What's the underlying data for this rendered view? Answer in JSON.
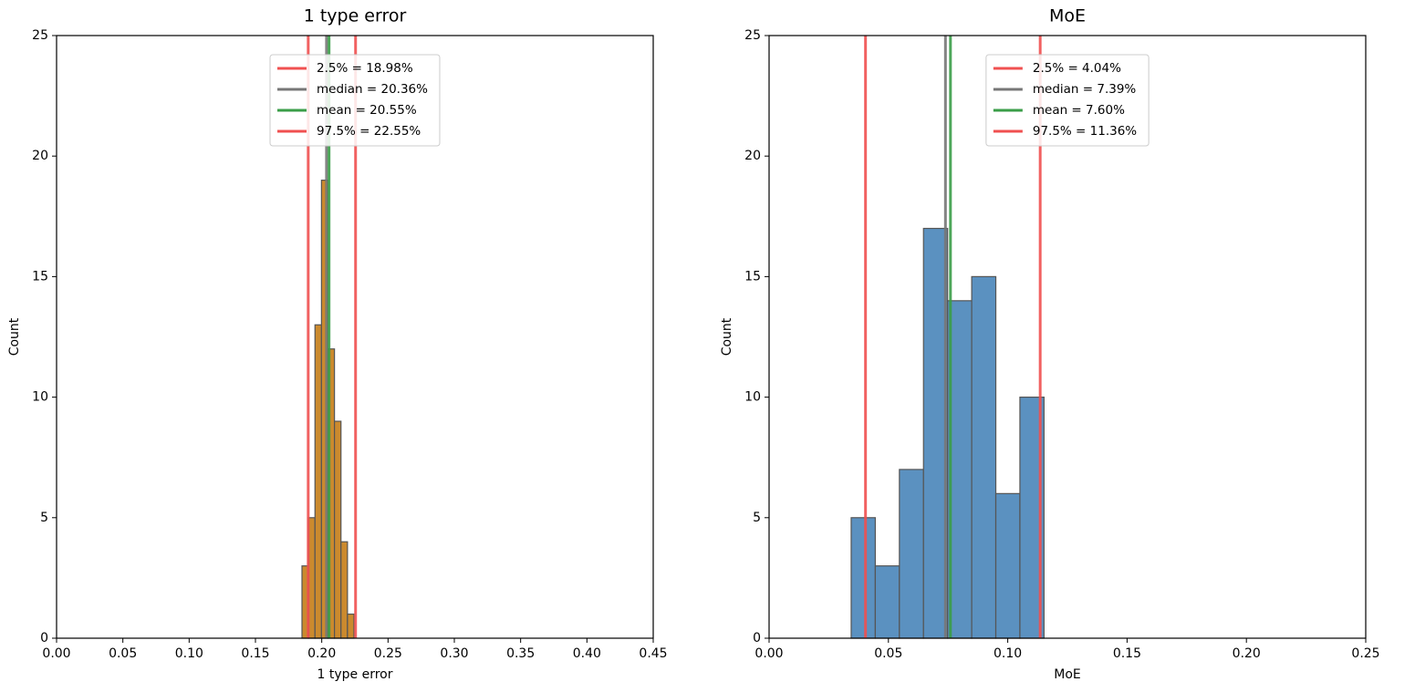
{
  "chart_data": [
    {
      "type": "histogram",
      "title": "1 type error",
      "xlabel": "1 type error",
      "ylabel": "Count",
      "bins": [
        0.1851,
        0.19,
        0.1949,
        0.1998,
        0.2047,
        0.2096,
        0.2145,
        0.2194,
        0.2243
      ],
      "counts": [
        3,
        5,
        13,
        19,
        12,
        9,
        4,
        1
      ],
      "color": "#cb8a2e",
      "xlim": [
        0,
        0.45
      ],
      "xticks": [
        {
          "value": 0,
          "label": "0.00"
        },
        {
          "value": 0.05,
          "label": "0.05"
        },
        {
          "value": 0.1,
          "label": "0.10"
        },
        {
          "value": 0.15,
          "label": "0.15"
        },
        {
          "value": 0.2,
          "label": "0.20"
        },
        {
          "value": 0.25,
          "label": "0.25"
        },
        {
          "value": 0.3,
          "label": "0.30"
        },
        {
          "value": 0.35,
          "label": "0.35"
        },
        {
          "value": 0.4,
          "label": "0.40"
        },
        {
          "value": 0.45,
          "label": "0.45"
        }
      ],
      "ylim": [
        0,
        25
      ],
      "yticks": [
        0,
        5,
        10,
        15,
        20,
        25
      ],
      "legend": "upper center",
      "lines": [
        {
          "name": "2.5% = 18.98%",
          "color": "#f05050",
          "value": 0.1898
        },
        {
          "name": "median = 20.36%",
          "color": "#777777",
          "value": 0.2036
        },
        {
          "name": "mean = 20.55%",
          "color": "#3a9e48",
          "value": 0.2055
        },
        {
          "name": "97.5% = 22.55%",
          "color": "#f05050",
          "value": 0.2255
        }
      ]
    },
    {
      "type": "histogram",
      "title": "MoE",
      "xlabel": "MoE",
      "ylabel": "Count",
      "bins": [
        0.0344,
        0.0445,
        0.0546,
        0.0647,
        0.0748,
        0.0849,
        0.095,
        0.1051,
        0.1152
      ],
      "counts": [
        5,
        3,
        7,
        17,
        14,
        15,
        6,
        10
      ],
      "color": "#5b91c0",
      "xlim": [
        0,
        0.25
      ],
      "xticks": [
        {
          "value": 0,
          "label": "0.00"
        },
        {
          "value": 0.05,
          "label": "0.05"
        },
        {
          "value": 0.1,
          "label": "0.10"
        },
        {
          "value": 0.15,
          "label": "0.15"
        },
        {
          "value": 0.2,
          "label": "0.20"
        },
        {
          "value": 0.25,
          "label": "0.25"
        }
      ],
      "ylim": [
        0,
        25
      ],
      "yticks": [
        0,
        5,
        10,
        15,
        20,
        25
      ],
      "legend": "upper center",
      "lines": [
        {
          "name": "2.5% = 4.04%",
          "color": "#f05050",
          "value": 0.0404
        },
        {
          "name": "median = 7.39%",
          "color": "#777777",
          "value": 0.0739
        },
        {
          "name": "mean = 7.60%",
          "color": "#3a9e48",
          "value": 0.076
        },
        {
          "name": "97.5% = 11.36%",
          "color": "#f05050",
          "value": 0.1136
        }
      ]
    }
  ]
}
